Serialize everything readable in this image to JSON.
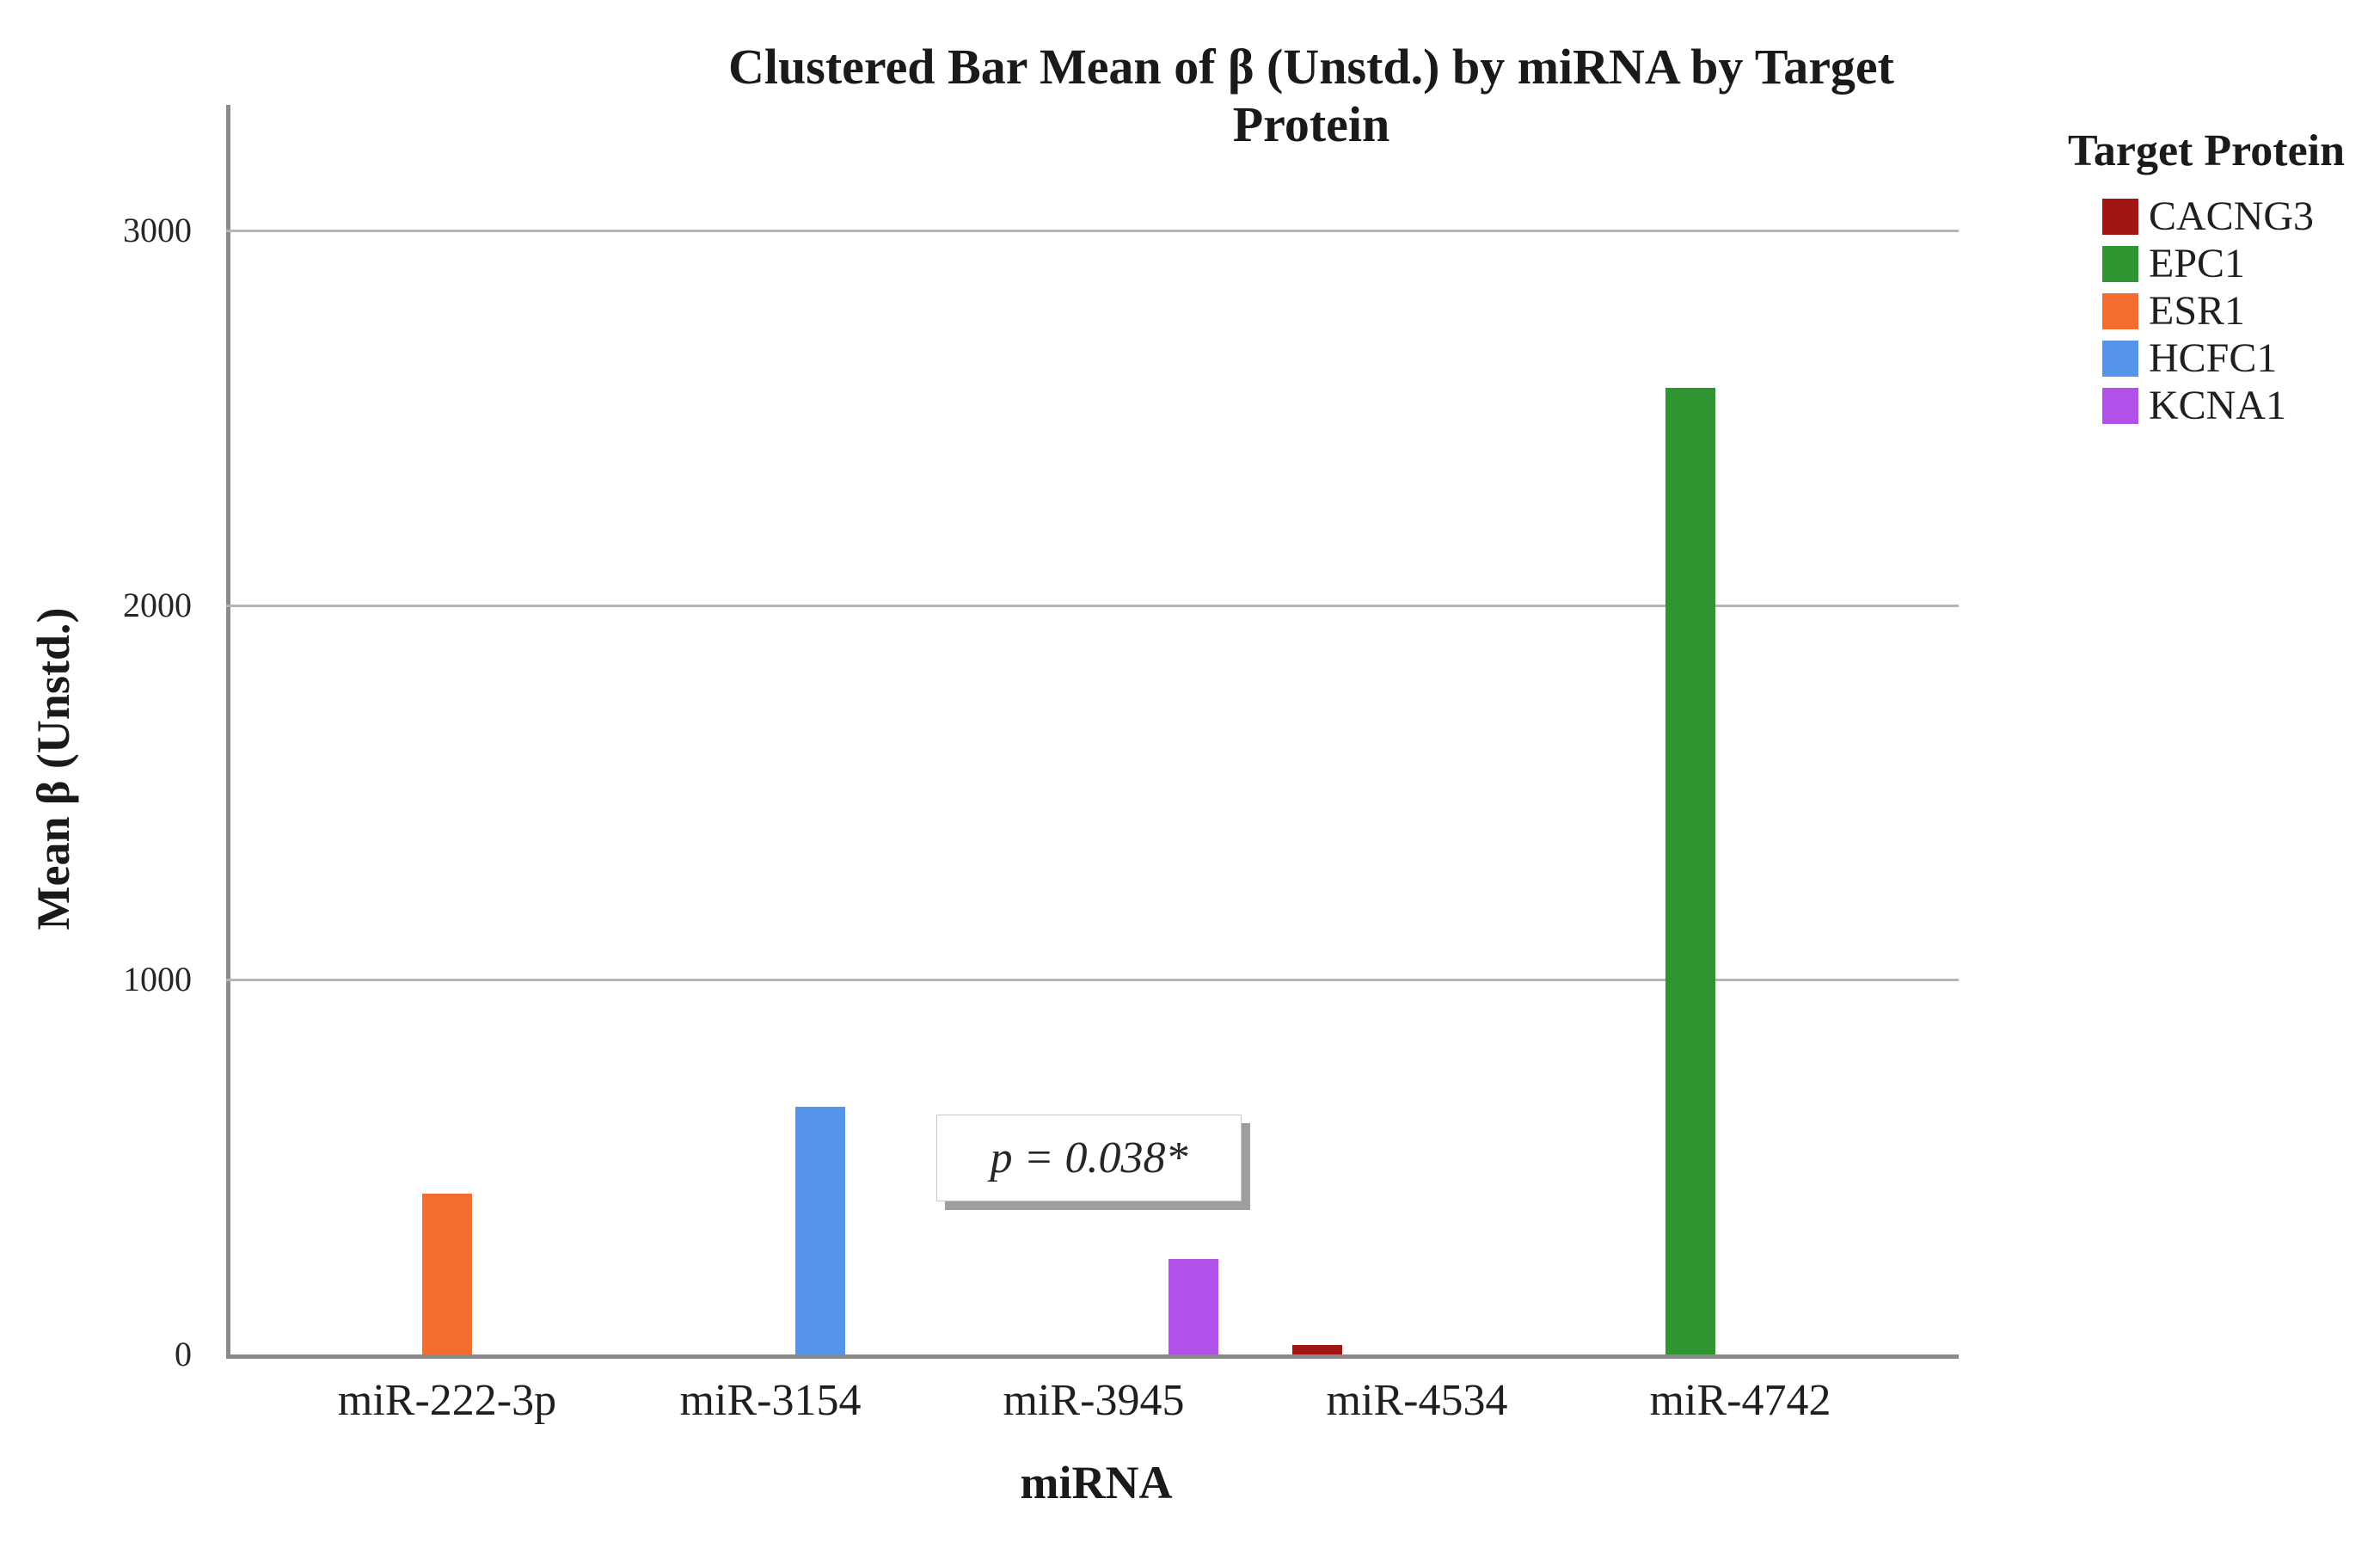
{
  "chart_data": {
    "type": "bar",
    "title": "Clustered Bar Mean of β (Unstd.) by miRNA by Target Protein",
    "xlabel": "miRNA",
    "ylabel": "Mean β (Unstd.)",
    "categories": [
      "miR-222-3p",
      "miR-3154",
      "miR-3945",
      "miR-4534",
      "miR-4742"
    ],
    "legend_title": "Target Protein",
    "legend_position": "right",
    "grid": true,
    "y_ticks": [
      0,
      1000,
      2000,
      3000
    ],
    "ylim": [
      0,
      3335
    ],
    "series": [
      {
        "name": "CACNG3",
        "color": "#a21515",
        "values": [
          null,
          null,
          null,
          25,
          null
        ]
      },
      {
        "name": "EPC1",
        "color": "#2e9531",
        "values": [
          null,
          null,
          null,
          null,
          2580
        ]
      },
      {
        "name": "ESR1",
        "color": "#f26d2f",
        "values": [
          430,
          null,
          null,
          null,
          null
        ]
      },
      {
        "name": "HCFC1",
        "color": "#5495e9",
        "values": [
          null,
          660,
          null,
          null,
          null
        ]
      },
      {
        "name": "KCNA1",
        "color": "#b250ea",
        "values": [
          null,
          null,
          255,
          null,
          null
        ]
      }
    ],
    "annotation": {
      "text": "p = 0.038*"
    }
  }
}
